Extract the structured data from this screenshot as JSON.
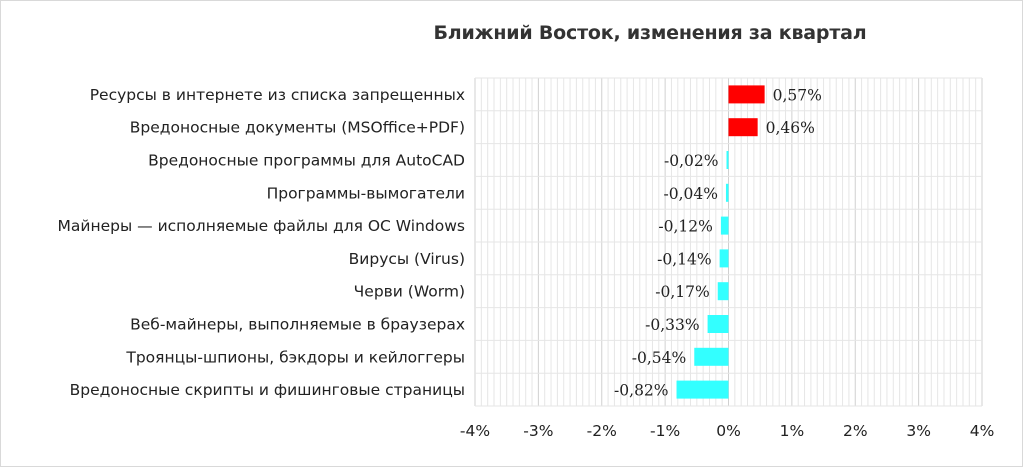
{
  "chart_data": {
    "type": "bar",
    "orientation": "horizontal",
    "title": "Ближний Восток, изменения за квартал",
    "categories": [
      "Ресурсы в интернете из списка запрещенных",
      "Вредоносные документы (MSOffice+PDF)",
      "Вредоносные программы для AutoCAD",
      "Программы-вымогатели",
      "Майнеры — исполняемые файлы для ОС Windows",
      "Вирусы (Virus)",
      "Черви (Worm)",
      "Веб-майнеры, выполняемые в браузерах",
      "Троянцы-шпионы, бэкдоры и кейлоггеры",
      "Вредоносные скрипты и фишинговые страницы"
    ],
    "values": [
      0.57,
      0.46,
      -0.02,
      -0.04,
      -0.12,
      -0.14,
      -0.17,
      -0.33,
      -0.54,
      -0.82
    ],
    "data_labels": [
      "0,57%",
      "0,46%",
      "-0,02%",
      "-0,04%",
      "-0,12%",
      "-0,14%",
      "-0,17%",
      "-0,33%",
      "-0,54%",
      "-0,82%"
    ],
    "xlim": [
      -4,
      4
    ],
    "ticks": [
      -4,
      -3,
      -2,
      -1,
      0,
      1,
      2,
      3,
      4
    ],
    "tick_labels": [
      "-4%",
      "-3%",
      "-2%",
      "-1%",
      "0%",
      "1%",
      "2%",
      "3%",
      "4%"
    ],
    "grid": true,
    "legend": "none",
    "colors": {
      "positive": "#ff0000",
      "negative": "#33ffff",
      "grid": "#e6e6e6",
      "text": "#222222",
      "title": "#333333"
    }
  }
}
